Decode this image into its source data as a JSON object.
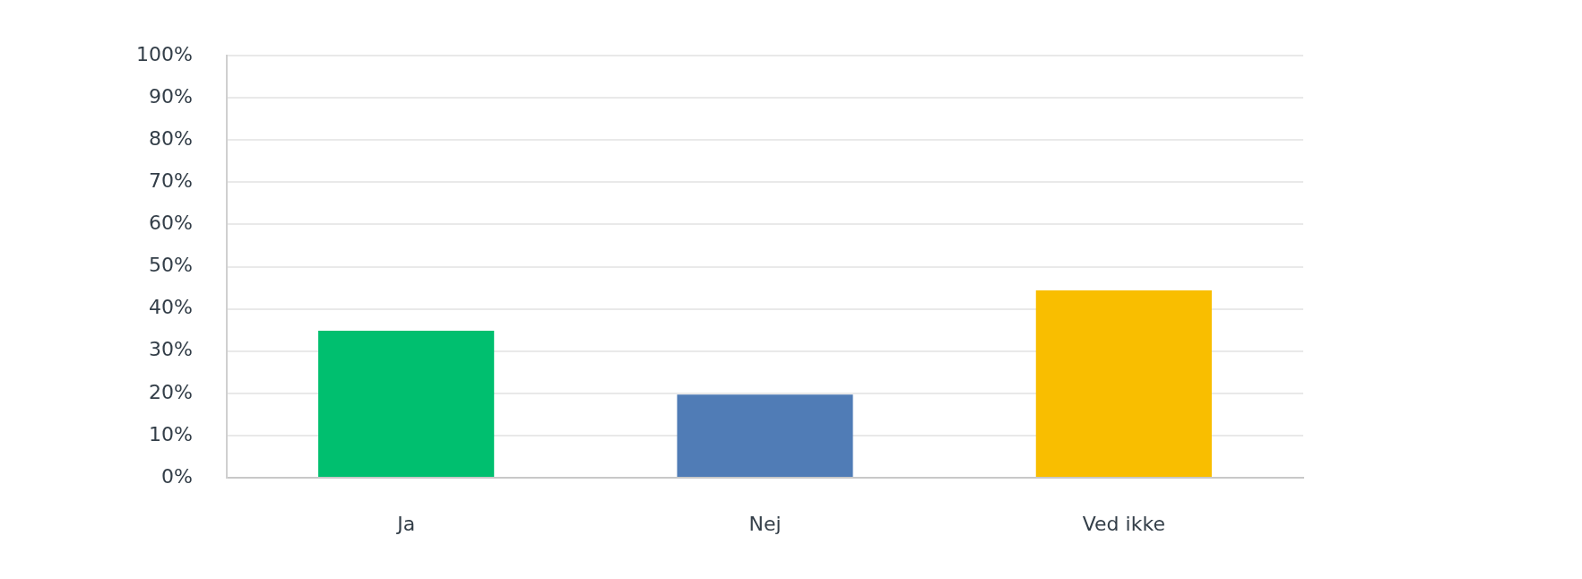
{
  "chart_data": {
    "type": "bar",
    "categories": [
      "Ja",
      "Nej",
      "Ved ikke"
    ],
    "values": [
      34.8,
      19.7,
      44.4
    ],
    "colors": [
      "#00bf6f",
      "#507cb6",
      "#f9be00"
    ],
    "ylim": [
      0,
      100
    ],
    "yticks": [
      {
        "value": 0,
        "label": "0%"
      },
      {
        "value": 10,
        "label": "10%"
      },
      {
        "value": 20,
        "label": "20%"
      },
      {
        "value": 30,
        "label": "30%"
      },
      {
        "value": 40,
        "label": "40%"
      },
      {
        "value": 50,
        "label": "50%"
      },
      {
        "value": 60,
        "label": "60%"
      },
      {
        "value": 70,
        "label": "70%"
      },
      {
        "value": 80,
        "label": "80%"
      },
      {
        "value": 90,
        "label": "90%"
      },
      {
        "value": 100,
        "label": "100%"
      }
    ],
    "grid": "y"
  }
}
